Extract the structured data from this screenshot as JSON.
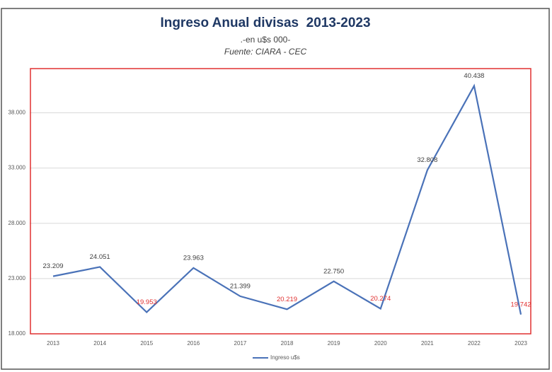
{
  "chart_data": {
    "type": "line",
    "title": "Ingreso Anual divisas  2013-2023",
    "subtitle": ".-en u$s 000-",
    "source": "Fuente: CIARA - CEC",
    "categories": [
      "2013",
      "2014",
      "2015",
      "2016",
      "2017",
      "2018",
      "2019",
      "2020",
      "2021",
      "2022",
      "2023"
    ],
    "series": [
      {
        "name": "Ingreso u$s",
        "color": "#4a72b8",
        "values": [
          23209,
          24051,
          19953,
          23963,
          21399,
          20219,
          22750,
          20274,
          32808,
          40438,
          19742
        ],
        "value_labels": [
          "23.209",
          "24.051",
          "19.953",
          "23.963",
          "21.399",
          "20.219",
          "22.750",
          "20.274",
          "32.808",
          "40.438",
          "19.742"
        ],
        "value_label_colors": [
          "#404040",
          "#404040",
          "#e03030",
          "#404040",
          "#404040",
          "#e03030",
          "#404040",
          "#e03030",
          "#404040",
          "#404040",
          "#e03030"
        ]
      }
    ],
    "ylim": [
      18000,
      42000
    ],
    "yticks": [
      {
        "value": 18000,
        "label": "18.000"
      },
      {
        "value": 23000,
        "label": "23.000"
      },
      {
        "value": 28000,
        "label": "28.000"
      },
      {
        "value": 33000,
        "label": "33.000"
      },
      {
        "value": 38000,
        "label": "38.000"
      }
    ],
    "grid": true,
    "legend": "bottom"
  }
}
